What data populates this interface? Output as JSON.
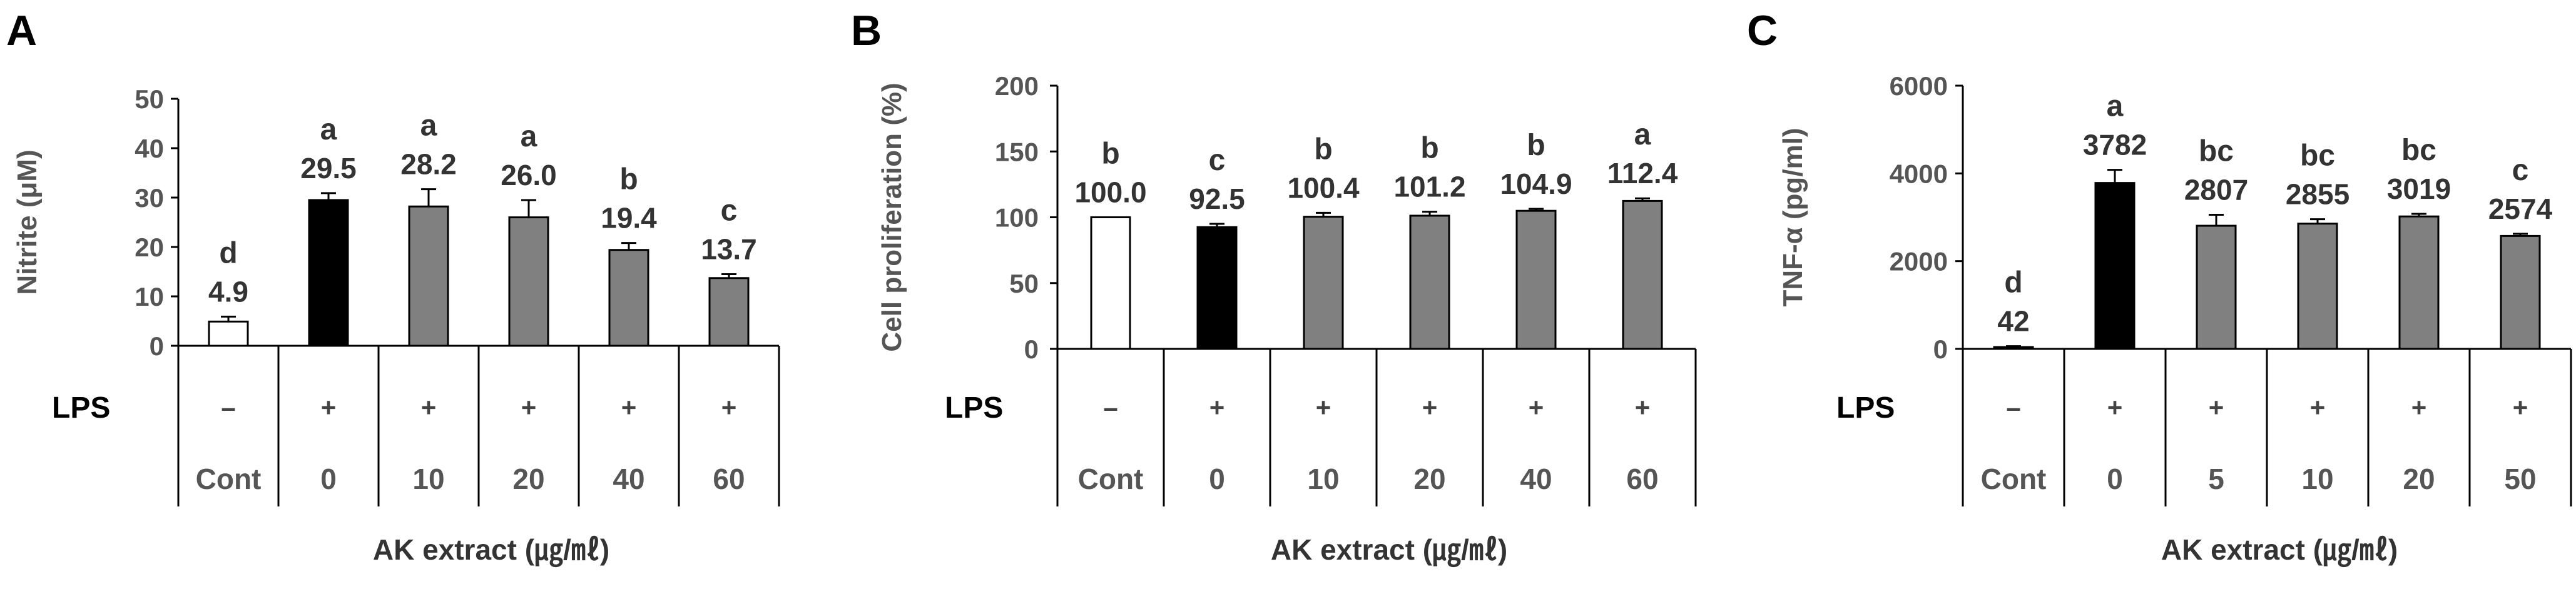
{
  "chart_data": [
    {
      "type": "bar",
      "panel": "A",
      "ylabel": "Nitrite (μM)",
      "ylim": [
        0,
        50
      ],
      "yticks": [
        0,
        10,
        20,
        30,
        40,
        50
      ],
      "xlabel": "AK extract (㎍/㎖)",
      "lps_label": "LPS",
      "lps": [
        "–",
        "+",
        "+",
        "+",
        "+",
        "+"
      ],
      "categories": [
        "Cont",
        "0",
        "10",
        "20",
        "40",
        "60"
      ],
      "values": [
        4.9,
        29.5,
        28.2,
        26.0,
        19.4,
        13.7
      ],
      "value_labels": [
        "4.9",
        "29.5",
        "28.2",
        "26.0",
        "19.4",
        "13.7"
      ],
      "errors": [
        1.0,
        1.4,
        3.5,
        3.5,
        1.4,
        0.8
      ],
      "significance": [
        "d",
        "a",
        "a",
        "a",
        "b",
        "c"
      ],
      "bar_colors": [
        "#ffffff",
        "#000000",
        "#808080",
        "#808080",
        "#808080",
        "#808080"
      ]
    },
    {
      "type": "bar",
      "panel": "B",
      "ylabel": "Cell proliferation (%)",
      "ylim": [
        0,
        200
      ],
      "yticks": [
        0,
        50,
        100,
        150,
        200
      ],
      "xlabel": "AK extract (㎍/㎖)",
      "lps_label": "LPS",
      "lps": [
        "–",
        "+",
        "+",
        "+",
        "+",
        "+"
      ],
      "categories": [
        "Cont",
        "0",
        "10",
        "20",
        "40",
        "60"
      ],
      "values": [
        100.0,
        92.5,
        100.4,
        101.2,
        104.9,
        112.4
      ],
      "value_labels": [
        "100.0",
        "92.5",
        "100.4",
        "101.2",
        "104.9",
        "112.4"
      ],
      "errors": [
        0,
        2.5,
        3.0,
        3.0,
        1.5,
        2.0
      ],
      "significance": [
        "b",
        "c",
        "b",
        "b",
        "b",
        "a"
      ],
      "bar_colors": [
        "#ffffff",
        "#000000",
        "#808080",
        "#808080",
        "#808080",
        "#808080"
      ]
    },
    {
      "type": "bar",
      "panel": "C",
      "ylabel": "TNF-α (pg/ml)",
      "ylim": [
        0,
        6000
      ],
      "yticks": [
        0,
        2000,
        4000,
        6000
      ],
      "xlabel": "AK extract (㎍/㎖)",
      "lps_label": "LPS",
      "lps": [
        "–",
        "+",
        "+",
        "+",
        "+",
        "+"
      ],
      "categories": [
        "Cont",
        "0",
        "5",
        "10",
        "20",
        "50"
      ],
      "values": [
        42,
        3782,
        2807,
        2855,
        3019,
        2574
      ],
      "value_labels": [
        "42",
        "3782",
        "2807",
        "2855",
        "3019",
        "2574"
      ],
      "errors": [
        20,
        300,
        250,
        100,
        60,
        50
      ],
      "significance": [
        "d",
        "a",
        "bc",
        "bc",
        "bc",
        "c"
      ],
      "bar_colors": [
        "#ffffff",
        "#000000",
        "#808080",
        "#808080",
        "#808080",
        "#808080"
      ]
    }
  ]
}
